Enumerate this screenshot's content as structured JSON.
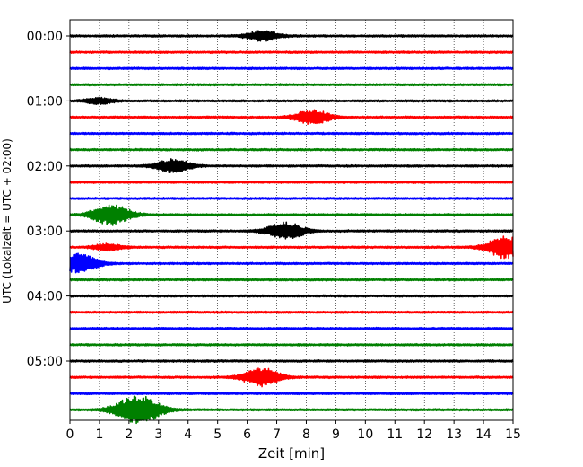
{
  "chart_data": {
    "type": "line",
    "title": "",
    "xlabel": "Zeit  [min]",
    "ylabel": "UTC (Lokalzeit = UTC + 02:00)",
    "xlim": [
      0,
      15
    ],
    "x_ticks": [
      "0",
      "1",
      "2",
      "3",
      "4",
      "5",
      "6",
      "7",
      "8",
      "9",
      "10",
      "11",
      "12",
      "13",
      "14",
      "15"
    ],
    "hour_labels": [
      "00:00",
      "01:00",
      "02:00",
      "03:00",
      "04:00",
      "05:00"
    ],
    "trace_count": 24,
    "trace_minutes": 15,
    "color_cycle": [
      "#000000",
      "#ff0000",
      "#0000ff",
      "#008000"
    ],
    "grid": "vertical-dotted",
    "events": [
      {
        "trace": 0,
        "minute": 6.5,
        "amplitude": 0.45
      },
      {
        "trace": 4,
        "minute": 1.0,
        "amplitude": 0.25
      },
      {
        "trace": 5,
        "minute": 8.2,
        "amplitude": 0.65
      },
      {
        "trace": 8,
        "minute": 3.5,
        "amplitude": 0.6
      },
      {
        "trace": 11,
        "minute": 1.4,
        "amplitude": 0.9
      },
      {
        "trace": 12,
        "minute": 7.3,
        "amplitude": 0.75
      },
      {
        "trace": 13,
        "minute": 14.8,
        "amplitude": 1.0
      },
      {
        "trace": 13,
        "minute": 1.3,
        "amplitude": 0.3
      },
      {
        "trace": 14,
        "minute": 0.3,
        "amplitude": 0.85
      },
      {
        "trace": 21,
        "minute": 6.5,
        "amplitude": 0.8
      },
      {
        "trace": 23,
        "minute": 2.3,
        "amplitude": 1.3
      }
    ]
  }
}
